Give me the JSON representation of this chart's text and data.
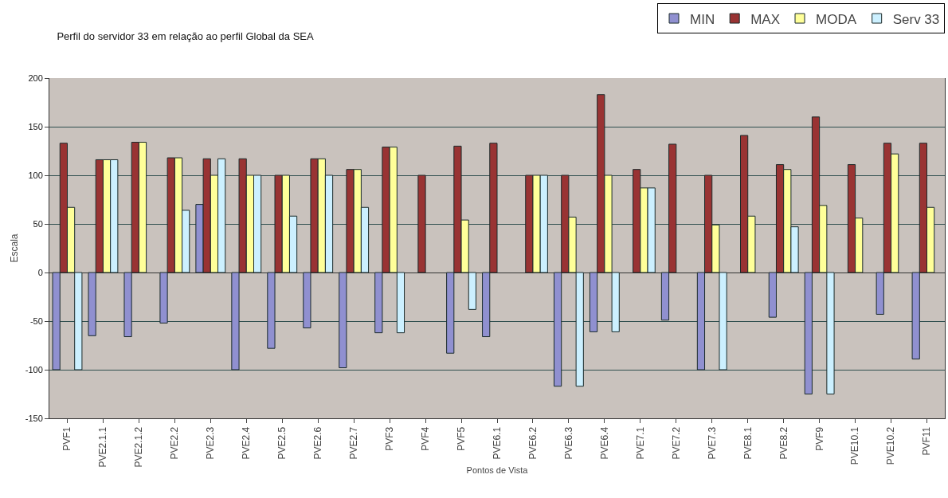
{
  "chart_data": {
    "type": "bar",
    "title": "Perfil do servidor 33 em relação ao perfil Global da SEA",
    "xlabel": "Pontos de Vista",
    "ylabel": "Escala",
    "categories": [
      "PVF1",
      "PVE2.1.1",
      "PVE2.1.2",
      "PVE2.2",
      "PVE2.3",
      "PVE2.4",
      "PVE2.5",
      "PVE2.6",
      "PVE2.7",
      "PVF3",
      "PVF4",
      "PVF5",
      "PVE6.1",
      "PVE6.2",
      "PVE6.3",
      "PVE6.4",
      "PVE7.1",
      "PVE7.2",
      "PVE7.3",
      "PVE8.1",
      "PVE8.2",
      "PVF9",
      "PVE10.1",
      "PVE10.2",
      "PVF11"
    ],
    "series": [
      {
        "name": "MIN",
        "color": "#9090d0",
        "values": [
          -100,
          -65,
          -66,
          -52,
          70,
          -100,
          -78,
          -57,
          -98,
          -62,
          null,
          -83,
          -66,
          null,
          -117,
          -61,
          null,
          -49,
          -100,
          null,
          -46,
          -125,
          null,
          -43,
          -89
        ]
      },
      {
        "name": "MAX",
        "color": "#993333",
        "values": [
          133,
          116,
          134,
          118,
          117,
          117,
          100,
          117,
          106,
          129,
          100,
          130,
          133,
          100,
          100,
          183,
          106,
          132,
          100,
          141,
          111,
          160,
          111,
          133,
          133
        ]
      },
      {
        "name": "MODA",
        "color": "#ffff99",
        "values": [
          67,
          116,
          134,
          118,
          100,
          100,
          100,
          117,
          106,
          129,
          null,
          54,
          null,
          100,
          57,
          100,
          87,
          null,
          49,
          58,
          106,
          69,
          56,
          122,
          67
        ]
      },
      {
        "name": "Serv 33",
        "color": "#ccf0ff",
        "values": [
          -100,
          116,
          null,
          64,
          117,
          100,
          58,
          100,
          67,
          -62,
          null,
          -38,
          null,
          100,
          -117,
          -61,
          87,
          null,
          -100,
          null,
          47,
          -125,
          null,
          null,
          null
        ]
      }
    ],
    "ylim": [
      -150,
      200
    ],
    "yticks": [
      -150,
      -100,
      -50,
      0,
      50,
      100,
      150,
      200
    ],
    "grid": "y",
    "legend": "top right"
  }
}
